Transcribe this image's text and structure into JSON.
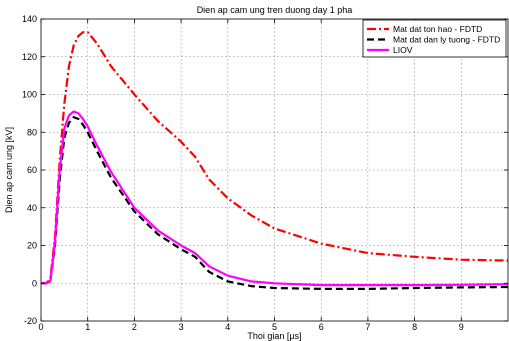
{
  "chart_data": {
    "type": "line",
    "title": "Dien ap cam ung tren duong day 1 pha",
    "xlabel": "Thoi gian [µs]",
    "ylabel": "Dien ap cam ung [kV]",
    "xlim": [
      0,
      10
    ],
    "ylim": [
      -20,
      140
    ],
    "xticks": [
      0,
      1,
      2,
      3,
      4,
      5,
      6,
      7,
      8,
      9
    ],
    "yticks": [
      -20,
      0,
      20,
      40,
      60,
      80,
      100,
      120,
      140
    ],
    "grid": true,
    "legend_position": "top-right",
    "series": [
      {
        "name": "Mat dat ton hao - FDTD",
        "color": "#ff0000",
        "style": "dashdot",
        "x": [
          0,
          0.1,
          0.2,
          0.3,
          0.4,
          0.5,
          0.6,
          0.7,
          0.8,
          0.9,
          1.0,
          1.2,
          1.5,
          2.0,
          2.5,
          3.0,
          3.3,
          3.6,
          4.0,
          4.5,
          5.0,
          6.0,
          7.0,
          8.0,
          9.0,
          10.0
        ],
        "y": [
          0,
          0,
          2,
          25,
          65,
          95,
          115,
          126,
          131,
          133,
          133,
          127,
          115,
          100,
          86,
          75,
          67,
          55,
          45,
          36,
          29,
          21,
          16,
          14,
          12.5,
          12
        ]
      },
      {
        "name": "Mat dat dan ly tuong - FDTD",
        "color": "#000000",
        "style": "dashed",
        "x": [
          0,
          0.1,
          0.2,
          0.3,
          0.4,
          0.5,
          0.6,
          0.7,
          0.8,
          0.9,
          1.0,
          1.2,
          1.5,
          2.0,
          2.5,
          3.0,
          3.3,
          3.6,
          4.0,
          4.5,
          5.0,
          6.0,
          7.0,
          8.0,
          9.0,
          10.0
        ],
        "y": [
          0,
          0,
          1,
          20,
          55,
          77,
          85,
          88,
          87,
          84,
          80,
          70,
          56,
          38,
          26,
          18,
          14,
          6,
          1,
          -1.5,
          -2.5,
          -3,
          -3,
          -2.5,
          -2.2,
          -2
        ]
      },
      {
        "name": "LIOV",
        "color": "#ff00ff",
        "style": "solid",
        "x": [
          0,
          0.1,
          0.2,
          0.3,
          0.4,
          0.5,
          0.6,
          0.7,
          0.8,
          0.9,
          1.0,
          1.2,
          1.5,
          2.0,
          2.5,
          3.0,
          3.3,
          3.6,
          4.0,
          4.5,
          5.0,
          6.0,
          7.0,
          8.0,
          9.0,
          10.0
        ],
        "y": [
          0,
          0,
          1,
          22,
          60,
          82,
          89,
          91,
          90,
          87,
          83,
          73,
          59,
          40,
          28,
          20,
          16,
          9,
          4,
          1,
          0,
          -1,
          -1,
          -1,
          -0.8,
          -0.5
        ]
      }
    ]
  }
}
